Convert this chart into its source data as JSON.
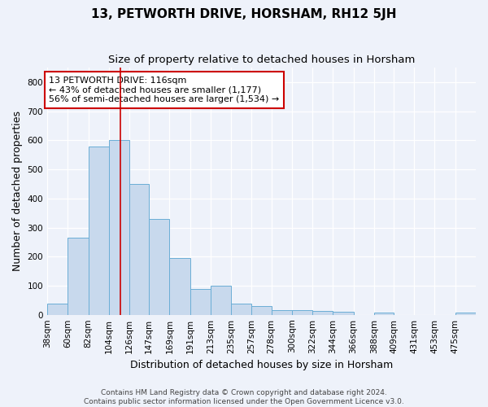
{
  "title": "13, PETWORTH DRIVE, HORSHAM, RH12 5JH",
  "subtitle": "Size of property relative to detached houses in Horsham",
  "xlabel": "Distribution of detached houses by size in Horsham",
  "ylabel": "Number of detached properties",
  "bar_color": "#c8d9ed",
  "bar_edge_color": "#6baed6",
  "categories": [
    "38sqm",
    "60sqm",
    "82sqm",
    "104sqm",
    "126sqm",
    "147sqm",
    "169sqm",
    "191sqm",
    "213sqm",
    "235sqm",
    "257sqm",
    "278sqm",
    "300sqm",
    "322sqm",
    "344sqm",
    "366sqm",
    "388sqm",
    "409sqm",
    "431sqm",
    "453sqm",
    "475sqm"
  ],
  "values": [
    37,
    265,
    580,
    600,
    450,
    330,
    195,
    88,
    100,
    38,
    30,
    15,
    16,
    12,
    10,
    0,
    8,
    0,
    0,
    0,
    8
  ],
  "ylim": [
    0,
    850
  ],
  "yticks": [
    0,
    100,
    200,
    300,
    400,
    500,
    600,
    700,
    800
  ],
  "bin_edges": [
    38,
    60,
    82,
    104,
    126,
    147,
    169,
    191,
    213,
    235,
    257,
    278,
    300,
    322,
    344,
    366,
    388,
    409,
    431,
    453,
    475,
    497
  ],
  "property_line_x": 116,
  "annotation_text": "13 PETWORTH DRIVE: 116sqm\n← 43% of detached houses are smaller (1,177)\n56% of semi-detached houses are larger (1,534) →",
  "annotation_box_color": "#ffffff",
  "annotation_box_edge_color": "#cc0000",
  "property_line_color": "#cc0000",
  "background_color": "#eef2fa",
  "grid_color": "#ffffff",
  "footer_line1": "Contains HM Land Registry data © Crown copyright and database right 2024.",
  "footer_line2": "Contains public sector information licensed under the Open Government Licence v3.0.",
  "title_fontsize": 11,
  "subtitle_fontsize": 9.5,
  "xlabel_fontsize": 9,
  "ylabel_fontsize": 9,
  "tick_fontsize": 7.5,
  "annotation_fontsize": 8,
  "footer_fontsize": 6.5
}
